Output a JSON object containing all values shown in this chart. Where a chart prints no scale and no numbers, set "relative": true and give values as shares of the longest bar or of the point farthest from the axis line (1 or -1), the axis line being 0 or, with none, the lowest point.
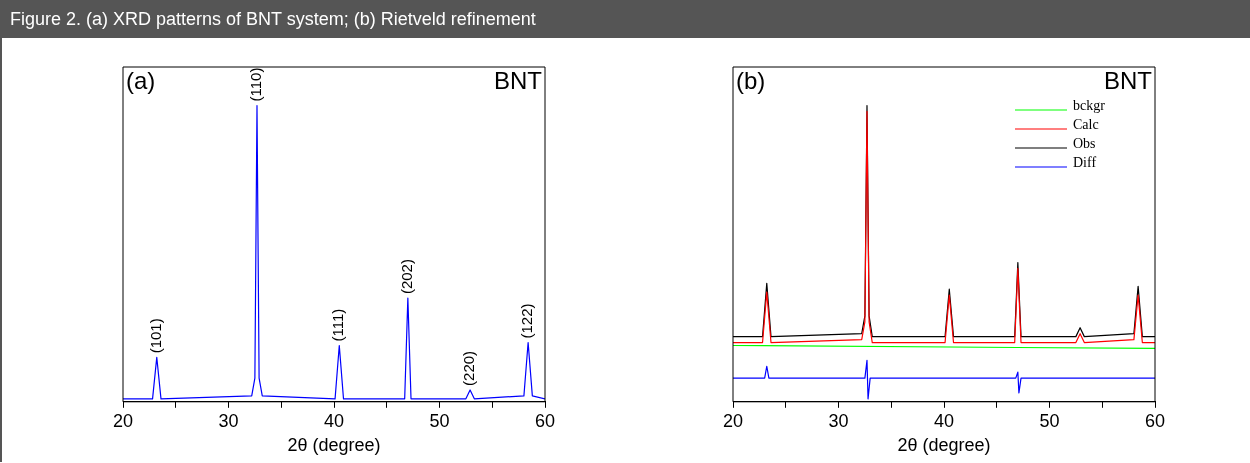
{
  "chart_data": [
    {
      "type": "line",
      "title": "Figure 2. (a) XRD patterns of BNT system; (b) Rietveld refinement",
      "xlabel": "2θ (degree)",
      "relative": true,
      "tick_labels": "x",
      "xlim": [
        20,
        60
      ],
      "xticks": [
        20,
        {
          "value": 25,
          "label": null
        },
        30,
        {
          "value": 35,
          "label": null
        },
        40,
        {
          "value": 45,
          "label": null
        },
        50,
        {
          "value": 55,
          "label": null
        },
        60
      ],
      "series": [
        {
          "color": "#0000ff",
          "x": [
            20,
            22.8,
            23.2,
            23.6,
            32.2,
            32.5,
            32.7,
            32.9,
            33.2,
            40.1,
            40.5,
            40.9,
            46.7,
            47.0,
            47.3,
            52.5,
            52.9,
            53.3,
            58.0,
            58.4,
            58.8,
            60
          ],
          "values": [
            0.01,
            0.01,
            0.15,
            0.01,
            0.02,
            0.08,
            1,
            0.08,
            0.02,
            0.01,
            0.19,
            0.01,
            0.01,
            0.35,
            0.01,
            0.01,
            0.04,
            0.01,
            0.02,
            0.2,
            0.02,
            0.01
          ]
        }
      ],
      "annotations": [
        "(a)",
        "BNT",
        {
          "text": "(101)",
          "x": 23.2,
          "y": 0.15
        },
        {
          "text": "(110)",
          "x": 32.7,
          "y": 1
        },
        {
          "text": "(111)",
          "x": 40.5,
          "y": 0.19
        },
        {
          "text": "(202)",
          "x": 47.0,
          "y": 0.35
        },
        {
          "text": "(220)",
          "x": 52.9,
          "y": 0.04
        },
        {
          "text": "(122)",
          "x": 58.4,
          "y": 0.2
        }
      ]
    },
    {
      "type": "line",
      "xlabel": "2θ (degree)",
      "relative": true,
      "tick_labels": "x",
      "legend": "top right",
      "xlim": [
        20,
        60
      ],
      "xticks": [
        20,
        {
          "value": 25,
          "label": null
        },
        30,
        {
          "value": 35,
          "label": null
        },
        40,
        {
          "value": 45,
          "label": null
        },
        50,
        {
          "value": 55,
          "label": null
        },
        60
      ],
      "series": [
        {
          "name": "bckgr",
          "color": "#00ff00",
          "x": [
            20,
            60
          ],
          "values": [
            0.19,
            0.18
          ]
        },
        {
          "name": "Calc",
          "color": "#ff0000",
          "x": [
            20,
            22.8,
            23.2,
            23.6,
            32.2,
            32.5,
            32.7,
            32.9,
            33.2,
            40.1,
            40.5,
            40.9,
            46.7,
            47.0,
            47.3,
            52.5,
            52.9,
            53.3,
            58.0,
            58.4,
            58.8,
            60
          ],
          "values": [
            0.2,
            0.2,
            0.37,
            0.2,
            0.21,
            0.27,
            0.98,
            0.27,
            0.2,
            0.2,
            0.36,
            0.2,
            0.2,
            0.45,
            0.2,
            0.2,
            0.23,
            0.2,
            0.21,
            0.36,
            0.2,
            0.2
          ]
        },
        {
          "name": "Obs",
          "color": "#000000",
          "x": [
            20,
            22.8,
            23.2,
            23.6,
            32.2,
            32.5,
            32.7,
            32.9,
            33.2,
            40.1,
            40.5,
            40.9,
            46.7,
            47.0,
            47.3,
            52.5,
            52.9,
            53.3,
            58.0,
            58.4,
            58.8,
            60
          ],
          "values": [
            0.22,
            0.22,
            0.4,
            0.22,
            0.23,
            0.29,
            1,
            0.29,
            0.22,
            0.22,
            0.38,
            0.22,
            0.22,
            0.47,
            0.22,
            0.22,
            0.25,
            0.22,
            0.23,
            0.39,
            0.22,
            0.22
          ]
        },
        {
          "name": "Diff",
          "color": "#0000ff",
          "x": [
            20,
            23.0,
            23.2,
            23.4,
            32.5,
            32.7,
            32.8,
            33.0,
            46.8,
            47.0,
            47.1,
            47.3,
            60
          ],
          "values": [
            0.08,
            0.08,
            0.12,
            0.08,
            0.08,
            0.14,
            0.01,
            0.08,
            0.08,
            0.1,
            0.03,
            0.08,
            0.08
          ]
        }
      ],
      "annotations": [
        "(b)",
        "BNT"
      ]
    }
  ]
}
